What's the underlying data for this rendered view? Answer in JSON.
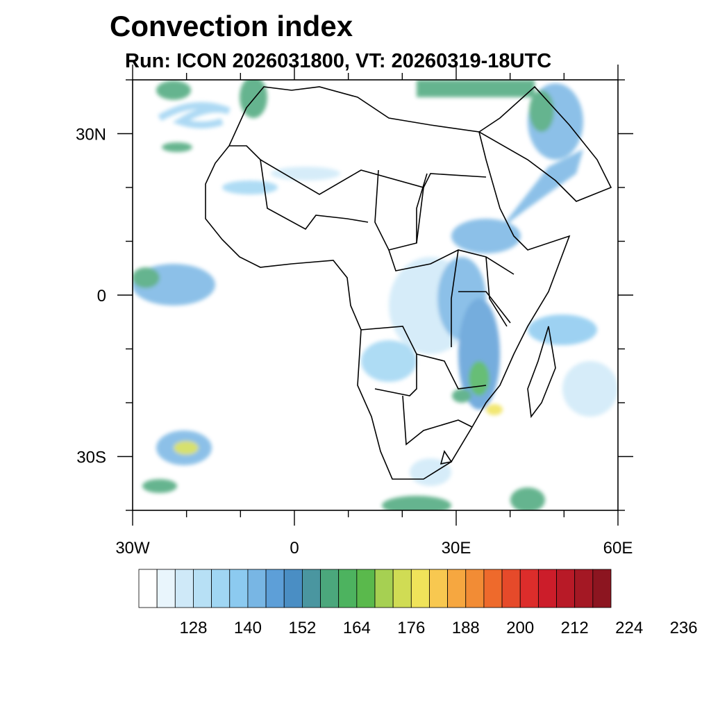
{
  "title": "Convection index",
  "subtitle": "Run: ICON 2026031800,  VT: 20260319-18UTC",
  "map": {
    "lat_ticks": [
      {
        "label": "30N",
        "lat": 30
      },
      {
        "label": "0",
        "lat": 0
      },
      {
        "label": "30S",
        "lat": -30
      }
    ],
    "lon_ticks": [
      {
        "label": "30W",
        "lon": -30
      },
      {
        "label": "0",
        "lon": 0
      },
      {
        "label": "30E",
        "lon": 30
      },
      {
        "label": "60E",
        "lon": 60
      }
    ],
    "extent": {
      "lon_min": -30,
      "lon_max": 60,
      "lat_min": -40,
      "lat_max": 40
    }
  },
  "colorbar": {
    "labels": [
      "128",
      "140",
      "152",
      "164",
      "176",
      "188",
      "200",
      "212",
      "224",
      "236"
    ],
    "colors": [
      "#ffffff",
      "#e9f5fc",
      "#cfe9f8",
      "#b7e0f5",
      "#a0d6f3",
      "#8ccaf0",
      "#78b6e4",
      "#5d9fd8",
      "#4a8ec4",
      "#4a96a0",
      "#4ba77c",
      "#4db35f",
      "#5ab94c",
      "#a6d052",
      "#d0dc54",
      "#f0e35a",
      "#f8c850",
      "#f6a740",
      "#f28c35",
      "#ee6a2c",
      "#e64a2a",
      "#dc2d2b",
      "#cc1d2a",
      "#b81a27",
      "#a41824",
      "#8c1520"
    ]
  }
}
